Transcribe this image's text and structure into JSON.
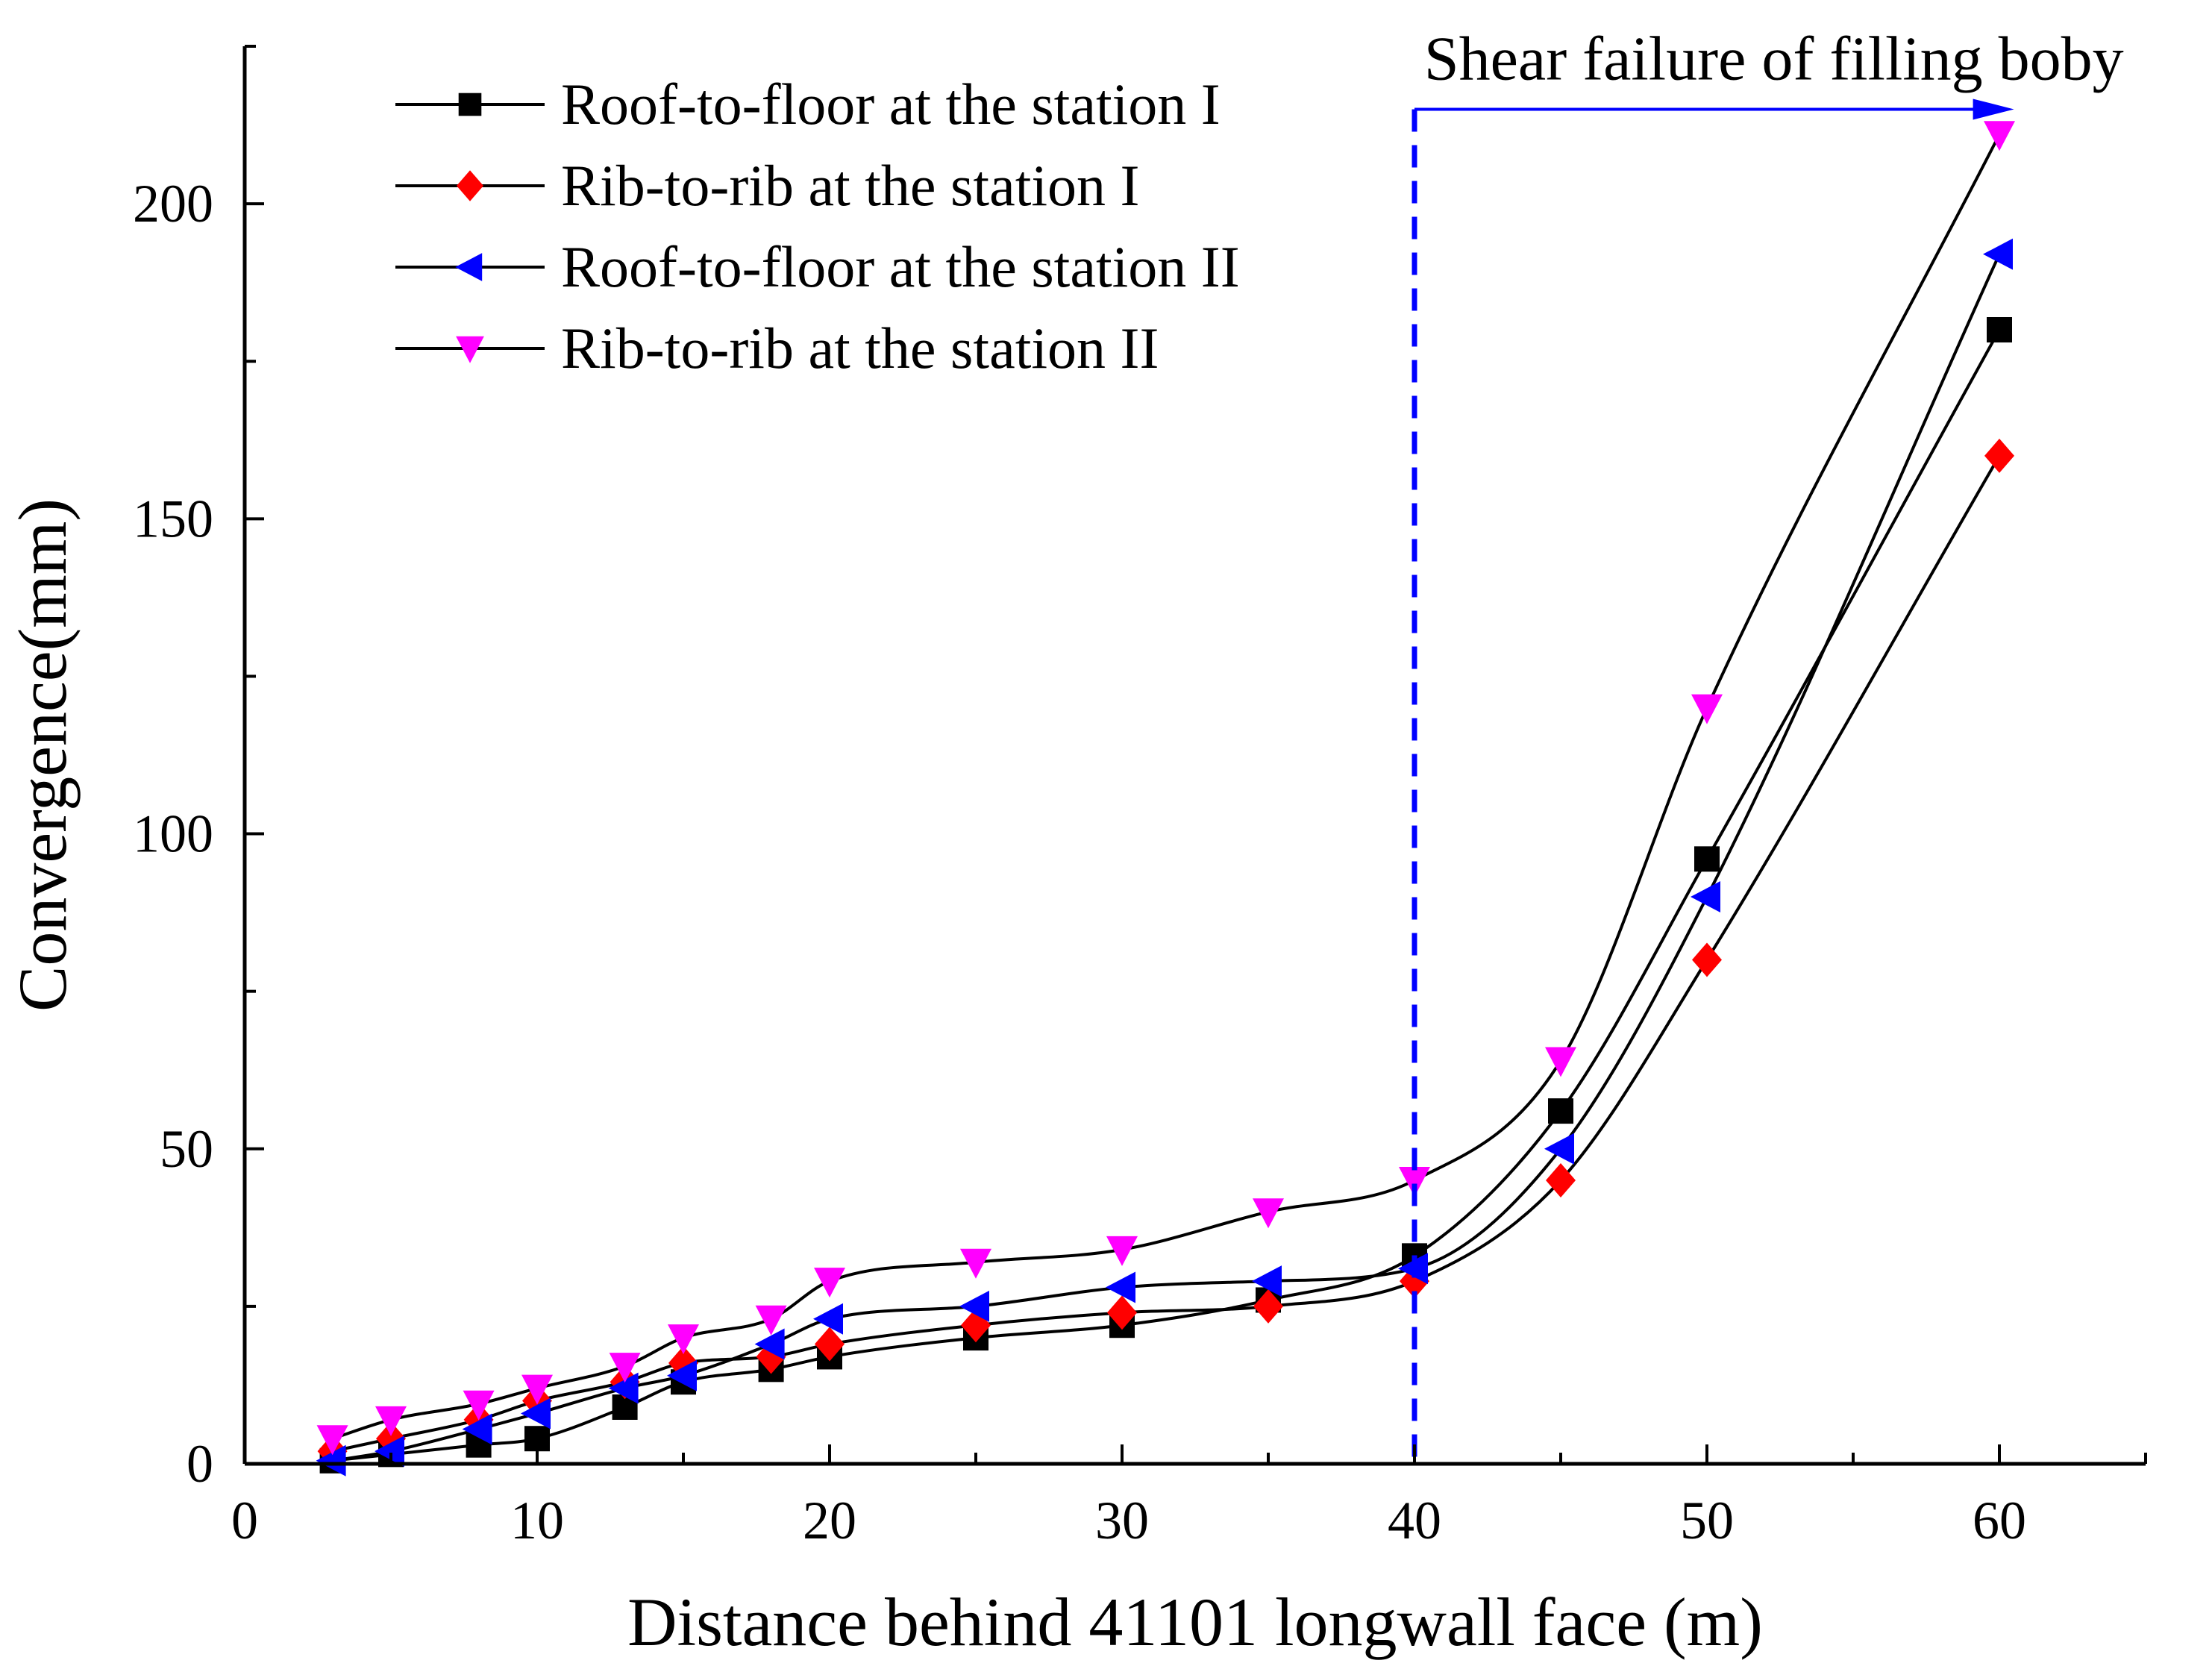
{
  "chart_data": {
    "type": "line",
    "title": "",
    "xlabel": "Distance behind 41101 longwall face (m)",
    "ylabel": "Convergence(mm)",
    "xlim": [
      0,
      65
    ],
    "ylim": [
      0,
      225
    ],
    "xticks": [
      0,
      10,
      20,
      30,
      40,
      50,
      60
    ],
    "yticks": [
      0,
      50,
      100,
      150,
      200
    ],
    "grid": false,
    "legend_position": "top-left",
    "annotation": {
      "text": "Shear failure of filling boby",
      "x_start": 40,
      "x_end": 60.5,
      "arrow_y": 215,
      "line_color": "#0000ff"
    },
    "series": [
      {
        "name": "Roof-to-floor at the station I",
        "marker": "square",
        "color": "#000000",
        "x": [
          3,
          5,
          8,
          10,
          13,
          15,
          18,
          20,
          25,
          30,
          35,
          40,
          45,
          50,
          60
        ],
        "y": [
          0.5,
          1.5,
          3,
          4,
          9,
          13,
          15,
          17,
          20,
          22,
          26,
          33,
          56,
          96,
          180
        ]
      },
      {
        "name": "Rib-to-rib at the station I",
        "marker": "diamond",
        "color": "#ff0000",
        "x": [
          3,
          5,
          8,
          10,
          13,
          15,
          18,
          20,
          25,
          30,
          35,
          40,
          45,
          50,
          60
        ],
        "y": [
          2,
          4,
          7,
          10,
          13,
          16,
          17,
          19,
          22,
          24,
          25,
          29,
          45,
          80,
          160
        ]
      },
      {
        "name": "Roof-to-floor at the station II",
        "marker": "triangle-left",
        "color": "#0000ff",
        "x": [
          3,
          5,
          8,
          10,
          13,
          15,
          18,
          20,
          25,
          30,
          35,
          40,
          45,
          50,
          60
        ],
        "y": [
          0.5,
          2,
          5.5,
          8,
          12,
          14,
          19,
          23,
          25,
          28,
          29,
          31,
          50,
          90,
          192
        ]
      },
      {
        "name": "Rib-to-rib at the station II",
        "marker": "triangle-down",
        "color": "#ff00ff",
        "x": [
          3,
          5,
          8,
          10,
          13,
          15,
          18,
          20,
          25,
          30,
          35,
          40,
          45,
          50,
          60
        ],
        "y": [
          4,
          7,
          9.5,
          12,
          15.5,
          20,
          23,
          29,
          32,
          34,
          40,
          45,
          64,
          120,
          211
        ]
      }
    ]
  }
}
